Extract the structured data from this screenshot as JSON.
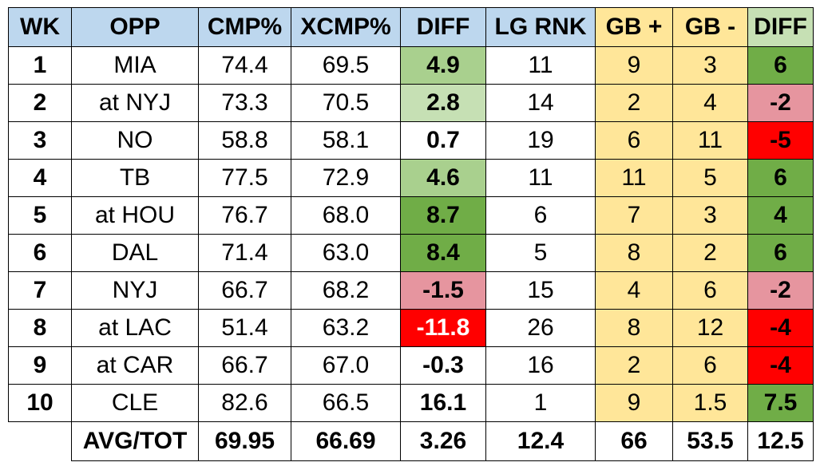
{
  "colors": {
    "header_blue": "#bdd7ee",
    "header_yellow": "#ffe699",
    "header_green": "#c6e0b4",
    "cell_yellow": "#ffe699",
    "diff_light_green": "#c6e0b4",
    "diff_mid_green": "#a9d08e",
    "diff_dark_green": "#70ad47",
    "diff_pink": "#e6959f",
    "diff_red": "#ff0000",
    "white": "#ffffff"
  },
  "headers": [
    "WK",
    "OPP",
    "CMP%",
    "XCMP%",
    "DIFF",
    "LG RNK",
    "GB +",
    "GB -",
    "DIFF"
  ],
  "rows": [
    {
      "wk": "1",
      "opp": "MIA",
      "cmp": "74.4",
      "xcmp": "69.5",
      "diff": "4.9",
      "rnk": "11",
      "gbp": "9",
      "gbm": "3",
      "gbdiff": "6"
    },
    {
      "wk": "2",
      "opp": "at NYJ",
      "cmp": "73.3",
      "xcmp": "70.5",
      "diff": "2.8",
      "rnk": "14",
      "gbp": "2",
      "gbm": "4",
      "gbdiff": "-2"
    },
    {
      "wk": "3",
      "opp": "NO",
      "cmp": "58.8",
      "xcmp": "58.1",
      "diff": "0.7",
      "rnk": "19",
      "gbp": "6",
      "gbm": "11",
      "gbdiff": "-5"
    },
    {
      "wk": "4",
      "opp": "TB",
      "cmp": "77.5",
      "xcmp": "72.9",
      "diff": "4.6",
      "rnk": "11",
      "gbp": "11",
      "gbm": "5",
      "gbdiff": "6"
    },
    {
      "wk": "5",
      "opp": "at HOU",
      "cmp": "76.7",
      "xcmp": "68.0",
      "diff": "8.7",
      "rnk": "6",
      "gbp": "7",
      "gbm": "3",
      "gbdiff": "4"
    },
    {
      "wk": "6",
      "opp": "DAL",
      "cmp": "71.4",
      "xcmp": "63.0",
      "diff": "8.4",
      "rnk": "5",
      "gbp": "8",
      "gbm": "2",
      "gbdiff": "6"
    },
    {
      "wk": "7",
      "opp": "NYJ",
      "cmp": "66.7",
      "xcmp": "68.2",
      "diff": "-1.5",
      "rnk": "15",
      "gbp": "4",
      "gbm": "6",
      "gbdiff": "-2"
    },
    {
      "wk": "8",
      "opp": "at LAC",
      "cmp": "51.4",
      "xcmp": "63.2",
      "diff": "-11.8",
      "rnk": "26",
      "gbp": "8",
      "gbm": "12",
      "gbdiff": "-4"
    },
    {
      "wk": "9",
      "opp": "at CAR",
      "cmp": "66.7",
      "xcmp": "67.0",
      "diff": "-0.3",
      "rnk": "16",
      "gbp": "2",
      "gbm": "6",
      "gbdiff": "-4"
    },
    {
      "wk": "10",
      "opp": "CLE",
      "cmp": "82.6",
      "xcmp": "66.5",
      "diff": "16.1",
      "rnk": "1",
      "gbp": "9",
      "gbm": "1.5",
      "gbdiff": "7.5"
    }
  ],
  "total": {
    "label": "AVG/TOT",
    "cmp": "69.95",
    "xcmp": "66.69",
    "diff": "3.26",
    "rnk": "12.4",
    "gbp": "66",
    "gbm": "53.5",
    "gbdiff": "12.5"
  },
  "diff_fill": [
    "#a9d08e",
    "#c6e0b4",
    "#ffffff",
    "#a9d08e",
    "#70ad47",
    "#70ad47",
    "#e6959f",
    "#ff0000",
    "#ffffff",
    "#ffffff"
  ],
  "diff_text_color": [
    "#000000",
    "#000000",
    "#000000",
    "#000000",
    "#000000",
    "#000000",
    "#000000",
    "#ffffff",
    "#000000",
    "#000000"
  ],
  "gbdiff_fill": [
    "#70ad47",
    "#e6959f",
    "#ff0000",
    "#70ad47",
    "#70ad47",
    "#70ad47",
    "#e6959f",
    "#ff0000",
    "#ff0000",
    "#70ad47"
  ]
}
